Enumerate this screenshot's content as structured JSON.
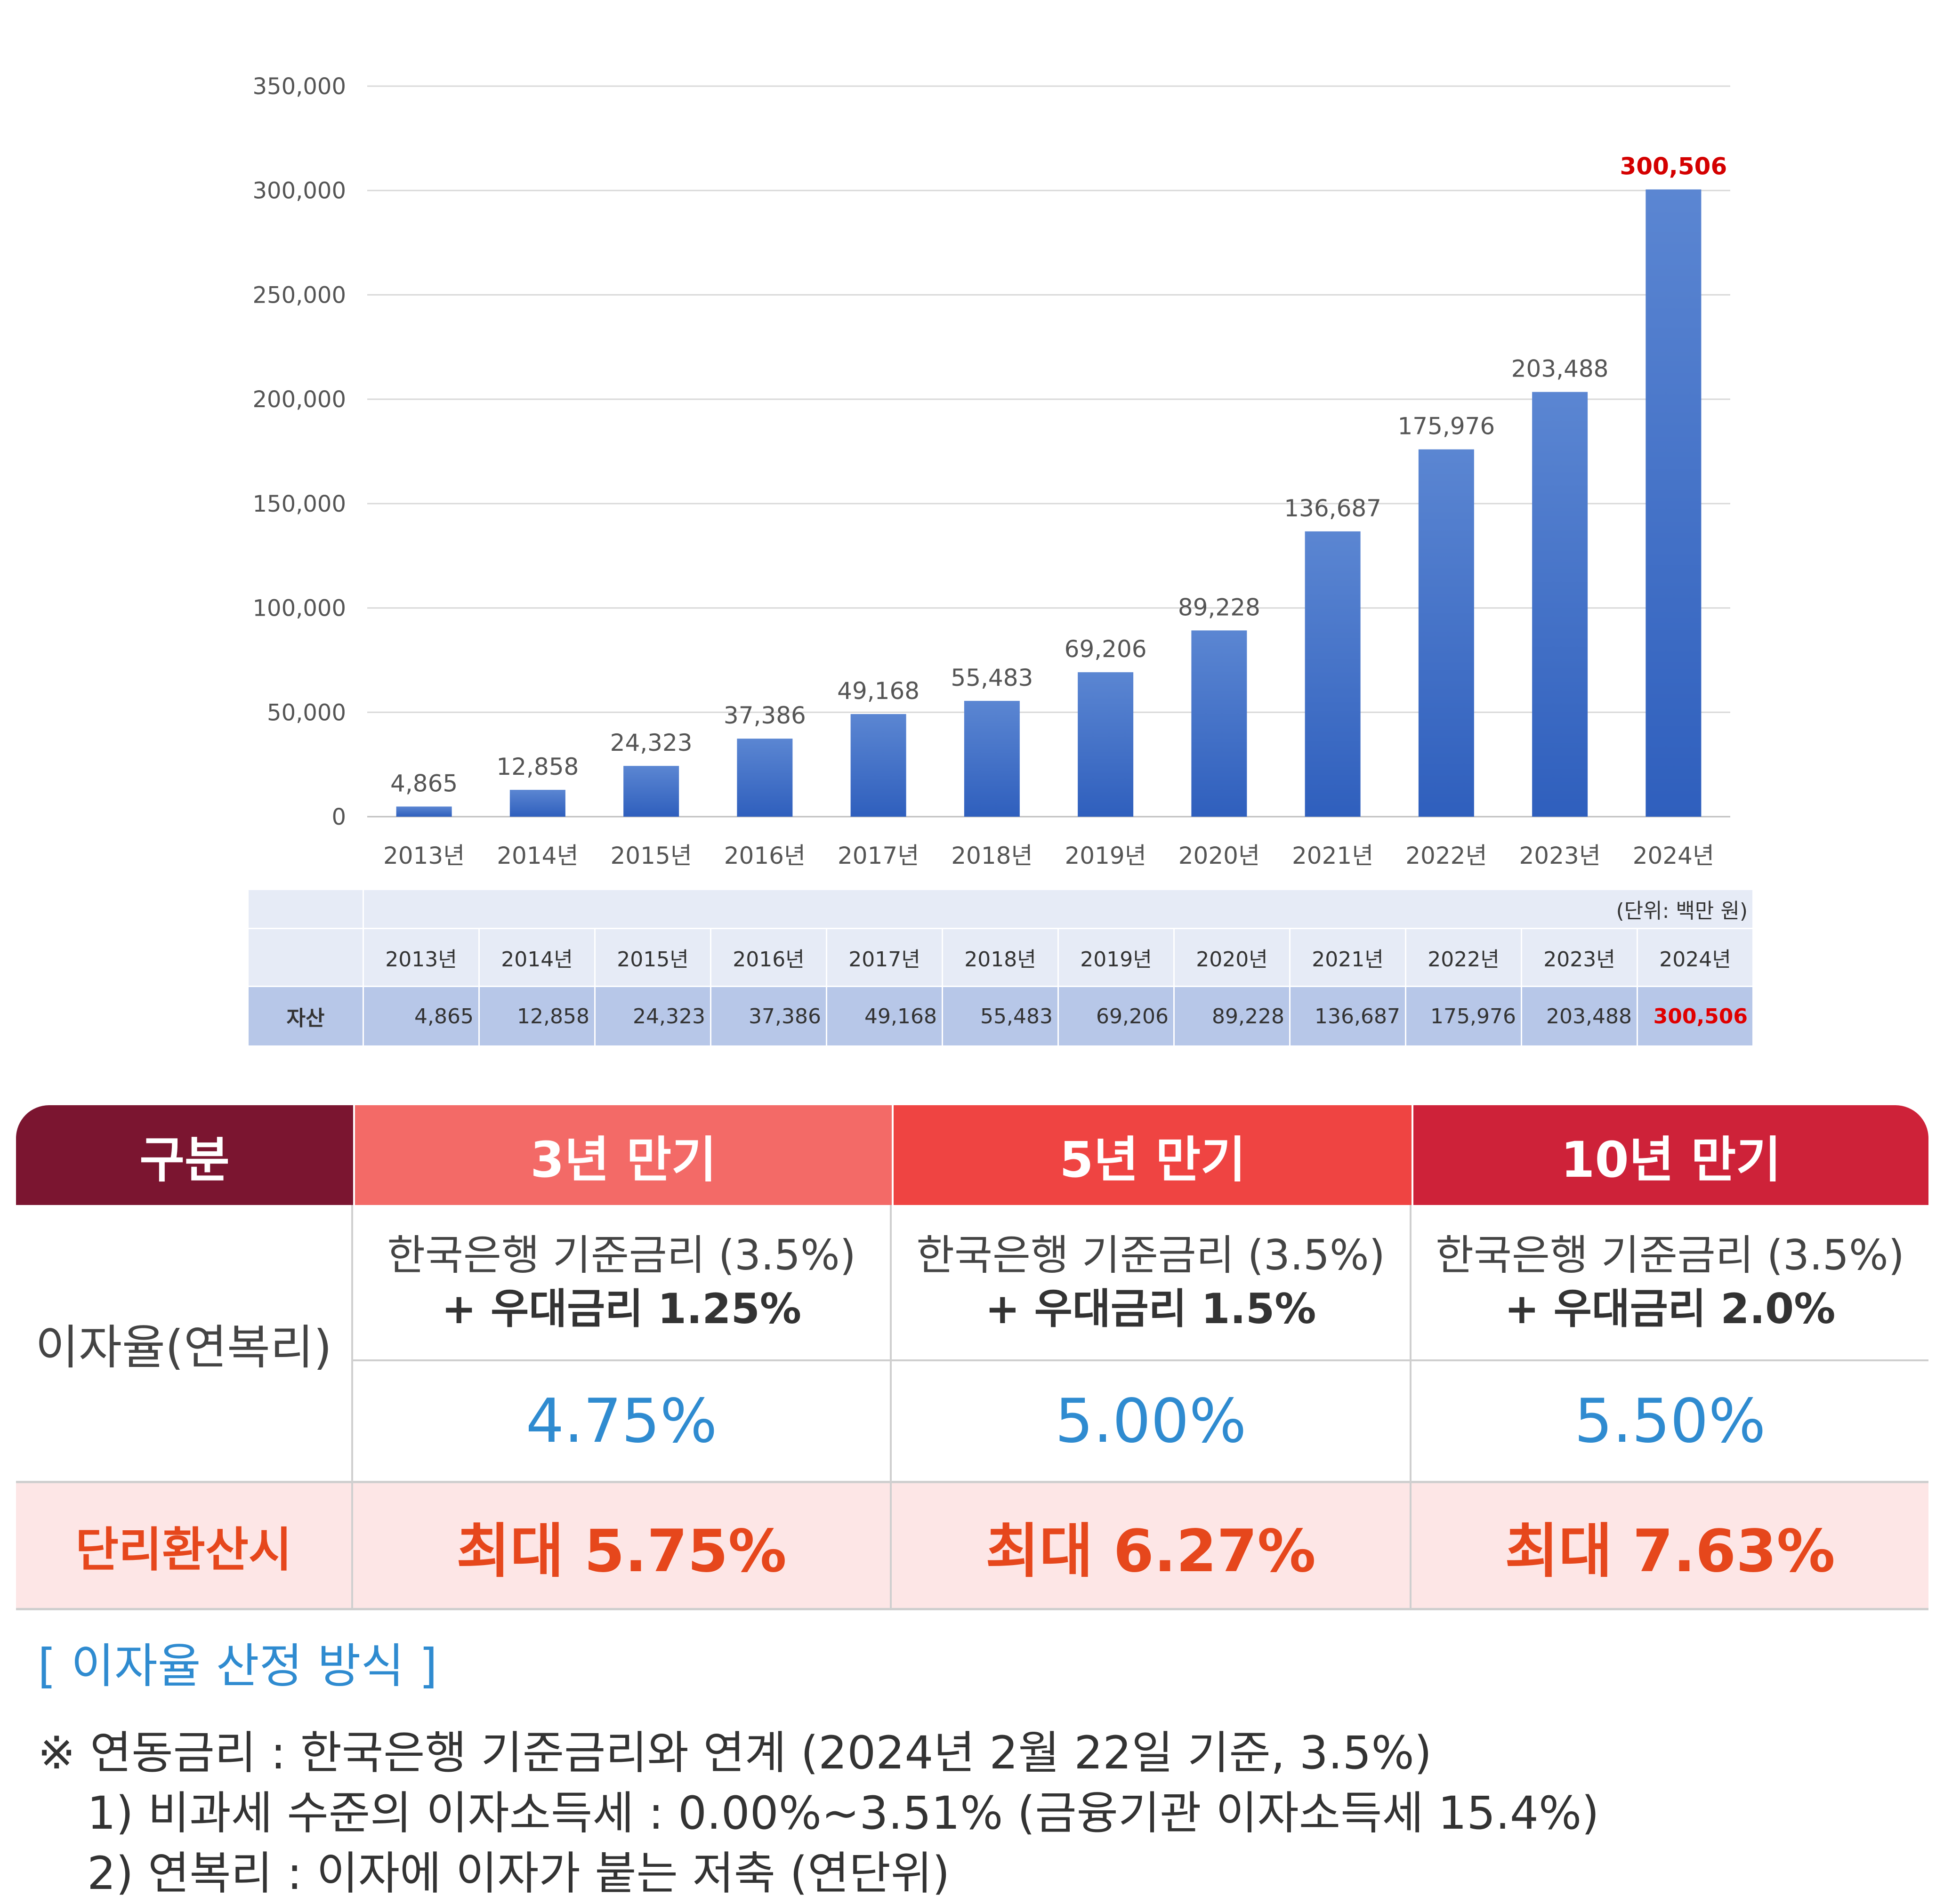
{
  "chart_data": {
    "type": "bar",
    "title": "",
    "xlabel": "",
    "ylabel": "",
    "ylim": [
      0,
      350000
    ],
    "yticks": [
      "350,000",
      "300,000",
      "250,000",
      "200,000",
      "150,000",
      "100,000",
      "50,000",
      "0"
    ],
    "ytick_values": [
      350000,
      300000,
      250000,
      200000,
      150000,
      100000,
      50000,
      0
    ],
    "categories": [
      "2013년",
      "2014년",
      "2015년",
      "2016년",
      "2017년",
      "2018년",
      "2019년",
      "2020년",
      "2021년",
      "2022년",
      "2023년",
      "2024년"
    ],
    "values": [
      4865,
      12858,
      24323,
      37386,
      49168,
      55483,
      69206,
      89228,
      136687,
      175976,
      203488,
      300506
    ],
    "value_labels": [
      "4,865",
      "12,858",
      "24,323",
      "37,386",
      "49,168",
      "55,483",
      "69,206",
      "89,228",
      "136,687",
      "175,976",
      "203,488",
      "300,506"
    ],
    "highlight_index": 11,
    "bar_color": "#4472c4",
    "highlight_label_color": "#d40000"
  },
  "asset_table": {
    "unit": "(단위: 백만 원)",
    "years": [
      "2013년",
      "2014년",
      "2015년",
      "2016년",
      "2017년",
      "2018년",
      "2019년",
      "2020년",
      "2021년",
      "2022년",
      "2023년",
      "2024년"
    ],
    "row_label": "자산",
    "values": [
      "4,865",
      "12,858",
      "24,323",
      "37,386",
      "49,168",
      "55,483",
      "69,206",
      "89,228",
      "136,687",
      "175,976",
      "203,488",
      "300,506"
    ]
  },
  "rate_table": {
    "header": {
      "label": "구분",
      "col1": "3년 만기",
      "col2": "5년 만기",
      "col3": "10년 만기"
    },
    "interest_label": "이자율(연복리)",
    "desc": [
      {
        "line1": "한국은행 기준금리 (3.5%)",
        "line2": "+ 우대금리 1.25%"
      },
      {
        "line1": "한국은행 기준금리 (3.5%)",
        "line2": "+ 우대금리 1.5%"
      },
      {
        "line1": "한국은행 기준금리 (3.5%)",
        "line2": "+ 우대금리 2.0%"
      }
    ],
    "rates": [
      "4.75%",
      "5.00%",
      "5.50%"
    ],
    "simple_label": "단리환산시",
    "simple_rates": [
      "최대 5.75%",
      "최대 6.27%",
      "최대 7.63%"
    ],
    "colors": {
      "label_bg": "#7b1530",
      "col1_bg": "#f36a67",
      "col2_bg": "#ef4442",
      "col3_bg": "#ce2239",
      "rate_blue": "#2f8bd0",
      "simple_orange": "#e6471c",
      "simple_bg": "#fde6e6"
    }
  },
  "notes": {
    "title": "[ 이자율 산정 방식 ]",
    "lines": [
      "※ 연동금리 : 한국은행 기준금리와 연계 (2024년 2월 22일 기준, 3.5%)",
      "1) 비과세 수준의 이자소득세 : 0.00%~3.51% (금융기관 이자소득세 15.4%)",
      "2) 연복리 : 이자에 이자가 붙는 저축 (연단위)"
    ]
  }
}
